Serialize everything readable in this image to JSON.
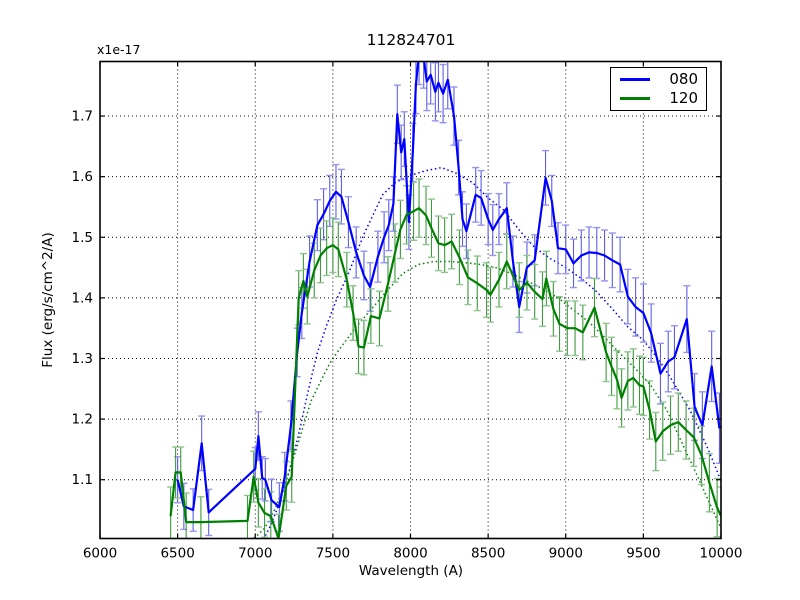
{
  "figure": {
    "title": "112824701",
    "offset_text": "x1e-17",
    "xlabel": "Wavelength (A)",
    "ylabel": "Flux (erg/s/cm^2/A)",
    "background_color": "#ffffff",
    "axis_color": "#000000"
  },
  "legend": {
    "position": "upper right",
    "items": [
      {
        "label": "080",
        "color": "#0000ff"
      },
      {
        "label": "120",
        "color": "#008000"
      }
    ]
  },
  "chart_data": {
    "type": "line",
    "title": "112824701",
    "xlabel": "Wavelength (A)",
    "ylabel": "Flux (erg/s/cm^2/A)",
    "y_offset_factor": "x1e-17",
    "xlim": [
      6000,
      10000
    ],
    "ylim": [
      1.003,
      1.79
    ],
    "xticks": [
      6000,
      6500,
      7000,
      7500,
      8000,
      8500,
      9000,
      9500,
      10000
    ],
    "xtick_labels": [
      "6000",
      "6500",
      "7000",
      "7500",
      "8000",
      "8500",
      "9000",
      "9500",
      "10000"
    ],
    "yticks": [
      1.1,
      1.2,
      1.3,
      1.4,
      1.5,
      1.6,
      1.7
    ],
    "ytick_labels": [
      "1.1",
      "1.2",
      "1.3",
      "1.4",
      "1.5",
      "1.6",
      "1.7"
    ],
    "grid": true,
    "grid_style": "dotted",
    "legend_position": "upper right",
    "series": [
      {
        "name": "080",
        "style": "solid_with_errorbars",
        "color": "#0000ff",
        "err_color": "#5d5dea",
        "cap_color": "#9595ef",
        "points": [
          [
            6500,
            1.1,
            0.038
          ],
          [
            6540,
            1.056,
            0.038
          ],
          [
            6600,
            1.05,
            0.035
          ],
          [
            6655,
            1.16,
            0.045
          ],
          [
            6700,
            1.046,
            0.038
          ],
          [
            7000,
            1.118,
            0.035
          ],
          [
            7020,
            1.172,
            0.04
          ],
          [
            7045,
            1.103,
            0.035
          ],
          [
            7065,
            1.1,
            0.035
          ],
          [
            7105,
            1.066,
            0.035
          ],
          [
            7155,
            1.055,
            0.04
          ],
          [
            7190,
            1.105,
            0.04
          ],
          [
            7230,
            1.19,
            0.04
          ],
          [
            7270,
            1.31,
            0.04
          ],
          [
            7300,
            1.375,
            0.042
          ],
          [
            7350,
            1.46,
            0.042
          ],
          [
            7400,
            1.52,
            0.042
          ],
          [
            7440,
            1.538,
            0.042
          ],
          [
            7480,
            1.56,
            0.042
          ],
          [
            7520,
            1.575,
            0.045
          ],
          [
            7555,
            1.567,
            0.045
          ],
          [
            7600,
            1.525,
            0.042
          ],
          [
            7650,
            1.475,
            0.042
          ],
          [
            7700,
            1.437,
            0.04
          ],
          [
            7740,
            1.418,
            0.04
          ],
          [
            7790,
            1.468,
            0.042
          ],
          [
            7830,
            1.5,
            0.042
          ],
          [
            7860,
            1.52,
            0.042
          ],
          [
            7890,
            1.555,
            0.045
          ],
          [
            7915,
            1.703,
            0.048
          ],
          [
            7940,
            1.64,
            0.045
          ],
          [
            7960,
            1.662,
            0.045
          ],
          [
            7990,
            1.525,
            0.045
          ],
          [
            8015,
            1.64,
            0.048
          ],
          [
            8035,
            1.752,
            0.048
          ],
          [
            8055,
            1.802,
            0.05
          ],
          [
            8085,
            1.796,
            0.05
          ],
          [
            8105,
            1.757,
            0.048
          ],
          [
            8130,
            1.768,
            0.048
          ],
          [
            8160,
            1.74,
            0.048
          ],
          [
            8180,
            1.755,
            0.048
          ],
          [
            8210,
            1.737,
            0.048
          ],
          [
            8240,
            1.76,
            0.048
          ],
          [
            8280,
            1.7,
            0.048
          ],
          [
            8310,
            1.615,
            0.045
          ],
          [
            8335,
            1.53,
            0.045
          ],
          [
            8360,
            1.51,
            0.045
          ],
          [
            8420,
            1.57,
            0.045
          ],
          [
            8455,
            1.565,
            0.045
          ],
          [
            8500,
            1.53,
            0.042
          ],
          [
            8530,
            1.512,
            0.042
          ],
          [
            8570,
            1.53,
            0.042
          ],
          [
            8620,
            1.548,
            0.042
          ],
          [
            8660,
            1.46,
            0.042
          ],
          [
            8700,
            1.385,
            0.042
          ],
          [
            8750,
            1.45,
            0.042
          ],
          [
            8800,
            1.462,
            0.042
          ],
          [
            8870,
            1.598,
            0.045
          ],
          [
            8910,
            1.56,
            0.042
          ],
          [
            8950,
            1.482,
            0.042
          ],
          [
            9000,
            1.48,
            0.04
          ],
          [
            9050,
            1.457,
            0.04
          ],
          [
            9100,
            1.47,
            0.042
          ],
          [
            9150,
            1.475,
            0.042
          ],
          [
            9200,
            1.474,
            0.042
          ],
          [
            9250,
            1.47,
            0.042
          ],
          [
            9300,
            1.462,
            0.045
          ],
          [
            9350,
            1.455,
            0.045
          ],
          [
            9400,
            1.402,
            0.045
          ],
          [
            9450,
            1.385,
            0.048
          ],
          [
            9500,
            1.375,
            0.048
          ],
          [
            9550,
            1.342,
            0.048
          ],
          [
            9610,
            1.275,
            0.05
          ],
          [
            9660,
            1.295,
            0.05
          ],
          [
            9700,
            1.302,
            0.052
          ],
          [
            9780,
            1.365,
            0.055
          ],
          [
            9830,
            1.22,
            0.055
          ],
          [
            9880,
            1.19,
            0.055
          ],
          [
            9940,
            1.287,
            0.058
          ],
          [
            9990,
            1.185,
            0.058
          ]
        ]
      },
      {
        "name": "120",
        "style": "solid_with_errorbars",
        "color": "#008000",
        "err_color": "#3f9a3f",
        "cap_color": "#8fc48f",
        "points": [
          [
            6455,
            1.04,
            0.048
          ],
          [
            6487,
            1.112,
            0.042
          ],
          [
            6520,
            1.112,
            0.042
          ],
          [
            6555,
            1.03,
            0.048
          ],
          [
            6650,
            1.03,
            0.042
          ],
          [
            6950,
            1.032,
            0.042
          ],
          [
            6990,
            1.105,
            0.042
          ],
          [
            7020,
            1.062,
            0.04
          ],
          [
            7060,
            1.045,
            0.04
          ],
          [
            7100,
            1.04,
            0.04
          ],
          [
            7150,
            1.003,
            0.04
          ],
          [
            7200,
            1.09,
            0.04
          ],
          [
            7235,
            1.105,
            0.042
          ],
          [
            7280,
            1.4,
            0.045
          ],
          [
            7310,
            1.428,
            0.045
          ],
          [
            7335,
            1.402,
            0.045
          ],
          [
            7380,
            1.445,
            0.045
          ],
          [
            7420,
            1.47,
            0.045
          ],
          [
            7460,
            1.482,
            0.045
          ],
          [
            7500,
            1.487,
            0.045
          ],
          [
            7535,
            1.48,
            0.045
          ],
          [
            7590,
            1.43,
            0.045
          ],
          [
            7630,
            1.375,
            0.045
          ],
          [
            7665,
            1.32,
            0.045
          ],
          [
            7700,
            1.318,
            0.045
          ],
          [
            7745,
            1.37,
            0.045
          ],
          [
            7800,
            1.366,
            0.045
          ],
          [
            7855,
            1.423,
            0.045
          ],
          [
            7900,
            1.474,
            0.048
          ],
          [
            7935,
            1.513,
            0.048
          ],
          [
            7975,
            1.537,
            0.048
          ],
          [
            8020,
            1.543,
            0.048
          ],
          [
            8055,
            1.548,
            0.048
          ],
          [
            8100,
            1.536,
            0.048
          ],
          [
            8135,
            1.515,
            0.048
          ],
          [
            8180,
            1.49,
            0.045
          ],
          [
            8220,
            1.487,
            0.045
          ],
          [
            8265,
            1.493,
            0.045
          ],
          [
            8315,
            1.467,
            0.045
          ],
          [
            8370,
            1.434,
            0.045
          ],
          [
            8430,
            1.424,
            0.045
          ],
          [
            8490,
            1.413,
            0.045
          ],
          [
            8515,
            1.405,
            0.045
          ],
          [
            8570,
            1.43,
            0.045
          ],
          [
            8620,
            1.46,
            0.045
          ],
          [
            8700,
            1.413,
            0.045
          ],
          [
            8750,
            1.425,
            0.045
          ],
          [
            8800,
            1.41,
            0.045
          ],
          [
            8850,
            1.398,
            0.045
          ],
          [
            8875,
            1.432,
            0.045
          ],
          [
            8920,
            1.382,
            0.045
          ],
          [
            8960,
            1.357,
            0.045
          ],
          [
            9010,
            1.35,
            0.045
          ],
          [
            9060,
            1.35,
            0.045
          ],
          [
            9110,
            1.343,
            0.045
          ],
          [
            9185,
            1.384,
            0.048
          ],
          [
            9260,
            1.31,
            0.048
          ],
          [
            9295,
            1.287,
            0.048
          ],
          [
            9330,
            1.265,
            0.048
          ],
          [
            9360,
            1.235,
            0.048
          ],
          [
            9400,
            1.263,
            0.048
          ],
          [
            9435,
            1.268,
            0.048
          ],
          [
            9475,
            1.256,
            0.048
          ],
          [
            9500,
            1.254,
            0.048
          ],
          [
            9540,
            1.215,
            0.048
          ],
          [
            9580,
            1.163,
            0.048
          ],
          [
            9625,
            1.18,
            0.048
          ],
          [
            9675,
            1.19,
            0.048
          ],
          [
            9725,
            1.195,
            0.048
          ],
          [
            9775,
            1.182,
            0.048
          ],
          [
            9825,
            1.17,
            0.048
          ],
          [
            9875,
            1.14,
            0.048
          ],
          [
            9925,
            1.095,
            0.048
          ],
          [
            9975,
            1.054,
            0.048
          ],
          [
            10000,
            1.04,
            0.048
          ]
        ]
      },
      {
        "name": "080 smoothed",
        "style": "dotted",
        "color": "#0000ff",
        "points": [
          [
            7040,
            0.995
          ],
          [
            7100,
            1.025
          ],
          [
            7160,
            1.065
          ],
          [
            7220,
            1.115
          ],
          [
            7280,
            1.175
          ],
          [
            7340,
            1.245
          ],
          [
            7400,
            1.31
          ],
          [
            7460,
            1.355
          ],
          [
            7520,
            1.395
          ],
          [
            7600,
            1.44
          ],
          [
            7700,
            1.505
          ],
          [
            7820,
            1.57
          ],
          [
            7900,
            1.59
          ],
          [
            8000,
            1.602
          ],
          [
            8100,
            1.61
          ],
          [
            8200,
            1.615
          ],
          [
            8300,
            1.605
          ],
          [
            8400,
            1.59
          ],
          [
            8500,
            1.565
          ],
          [
            8600,
            1.545
          ],
          [
            8700,
            1.512
          ],
          [
            8800,
            1.483
          ],
          [
            8900,
            1.465
          ],
          [
            9000,
            1.45
          ],
          [
            9100,
            1.432
          ],
          [
            9200,
            1.41
          ],
          [
            9300,
            1.382
          ],
          [
            9400,
            1.352
          ],
          [
            9500,
            1.33
          ],
          [
            9600,
            1.298
          ],
          [
            9700,
            1.258
          ],
          [
            9800,
            1.215
          ],
          [
            9900,
            1.16
          ],
          [
            9950,
            1.13
          ],
          [
            10000,
            1.098
          ]
        ]
      },
      {
        "name": "120 smoothed",
        "style": "dotted",
        "color": "#008000",
        "points": [
          [
            6940,
            0.998
          ],
          [
            7000,
            1.005
          ],
          [
            7060,
            1.02
          ],
          [
            7120,
            1.048
          ],
          [
            7180,
            1.085
          ],
          [
            7240,
            1.13
          ],
          [
            7300,
            1.18
          ],
          [
            7360,
            1.23
          ],
          [
            7420,
            1.262
          ],
          [
            7480,
            1.292
          ],
          [
            7550,
            1.318
          ],
          [
            7650,
            1.352
          ],
          [
            7750,
            1.382
          ],
          [
            7850,
            1.412
          ],
          [
            7950,
            1.44
          ],
          [
            8050,
            1.455
          ],
          [
            8150,
            1.46
          ],
          [
            8250,
            1.46
          ],
          [
            8350,
            1.458
          ],
          [
            8450,
            1.455
          ],
          [
            8550,
            1.45
          ],
          [
            8650,
            1.44
          ],
          [
            8750,
            1.428
          ],
          [
            8850,
            1.415
          ],
          [
            8950,
            1.4
          ],
          [
            9050,
            1.38
          ],
          [
            9150,
            1.36
          ],
          [
            9250,
            1.335
          ],
          [
            9350,
            1.308
          ],
          [
            9450,
            1.283
          ],
          [
            9550,
            1.255
          ],
          [
            9650,
            1.215
          ],
          [
            9750,
            1.16
          ],
          [
            9850,
            1.105
          ],
          [
            9950,
            1.048
          ],
          [
            10000,
            1.02
          ]
        ]
      }
    ]
  }
}
